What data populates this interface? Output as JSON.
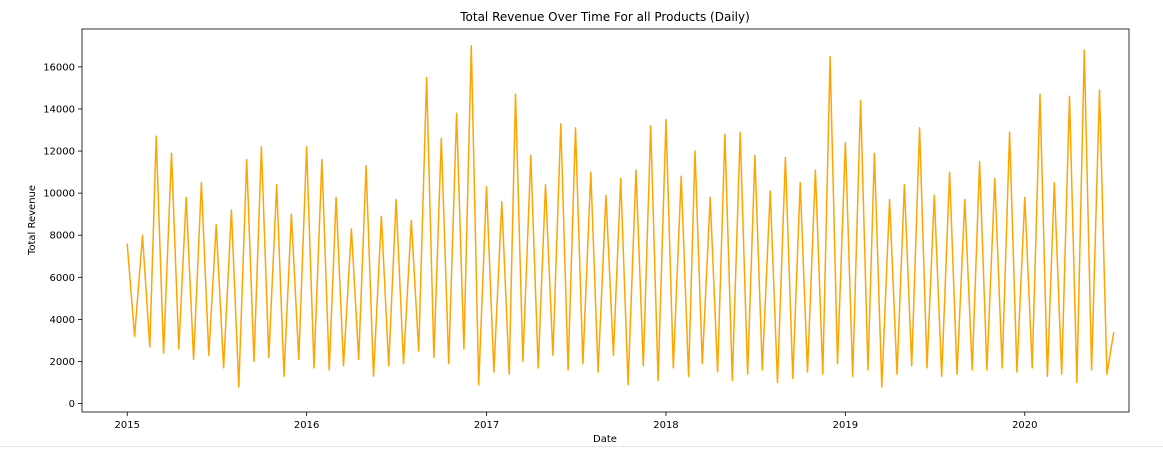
{
  "chart_data": {
    "type": "line",
    "title": "Total Revenue Over Time For all Products (Daily)",
    "xlabel": "Date",
    "ylabel": "Total Revenue",
    "x_range": [
      "2014-10-01",
      "2020-07-31"
    ],
    "ylim": [
      -400,
      17800
    ],
    "x_ticks": [
      "2015",
      "2016",
      "2017",
      "2018",
      "2019",
      "2020"
    ],
    "y_ticks": [
      0,
      2000,
      4000,
      6000,
      8000,
      10000,
      12000,
      14000,
      16000
    ],
    "grid": false,
    "legend": "none",
    "series": [
      {
        "color": "#ffa500",
        "x": [
          "2015-01-01",
          "2015-01-16",
          "2015-02-01",
          "2015-02-16",
          "2015-03-01",
          "2015-03-16",
          "2015-04-01",
          "2015-04-16",
          "2015-05-01",
          "2015-05-16",
          "2015-06-01",
          "2015-06-16",
          "2015-07-01",
          "2015-07-16",
          "2015-08-01",
          "2015-08-16",
          "2015-09-01",
          "2015-09-16",
          "2015-10-01",
          "2015-10-16",
          "2015-11-01",
          "2015-11-16",
          "2015-12-01",
          "2015-12-16",
          "2016-01-01",
          "2016-01-16",
          "2016-02-01",
          "2016-02-16",
          "2016-03-01",
          "2016-03-16",
          "2016-04-01",
          "2016-04-16",
          "2016-05-01",
          "2016-05-16",
          "2016-06-01",
          "2016-06-16",
          "2016-07-01",
          "2016-07-16",
          "2016-08-01",
          "2016-08-16",
          "2016-09-01",
          "2016-09-16",
          "2016-10-01",
          "2016-10-16",
          "2016-11-01",
          "2016-11-16",
          "2016-12-01",
          "2016-12-16",
          "2017-01-01",
          "2017-01-16",
          "2017-02-01",
          "2017-02-16",
          "2017-03-01",
          "2017-03-16",
          "2017-04-01",
          "2017-04-16",
          "2017-05-01",
          "2017-05-16",
          "2017-06-01",
          "2017-06-16",
          "2017-07-01",
          "2017-07-16",
          "2017-08-01",
          "2017-08-16",
          "2017-09-01",
          "2017-09-16",
          "2017-10-01",
          "2017-10-16",
          "2017-11-01",
          "2017-11-16",
          "2017-12-01",
          "2017-12-16",
          "2018-01-01",
          "2018-01-16",
          "2018-02-01",
          "2018-02-16",
          "2018-03-01",
          "2018-03-16",
          "2018-04-01",
          "2018-04-16",
          "2018-05-01",
          "2018-05-16",
          "2018-06-01",
          "2018-06-16",
          "2018-07-01",
          "2018-07-16",
          "2018-08-01",
          "2018-08-16",
          "2018-09-01",
          "2018-09-16",
          "2018-10-01",
          "2018-10-16",
          "2018-11-01",
          "2018-11-16",
          "2018-12-01",
          "2018-12-16",
          "2019-01-01",
          "2019-01-16",
          "2019-02-01",
          "2019-02-16",
          "2019-03-01",
          "2019-03-16",
          "2019-04-01",
          "2019-04-16",
          "2019-05-01",
          "2019-05-16",
          "2019-06-01",
          "2019-06-16",
          "2019-07-01",
          "2019-07-16",
          "2019-08-01",
          "2019-08-16",
          "2019-09-01",
          "2019-09-16",
          "2019-10-01",
          "2019-10-16",
          "2019-11-01",
          "2019-11-16",
          "2019-12-01",
          "2019-12-16",
          "2020-01-01",
          "2020-01-16",
          "2020-02-01",
          "2020-02-16",
          "2020-03-01",
          "2020-03-16",
          "2020-04-01",
          "2020-04-16",
          "2020-05-01",
          "2020-05-16",
          "2020-06-01",
          "2020-06-16",
          "2020-06-30"
        ],
        "values": [
          7600,
          3200,
          8000,
          2700,
          12700,
          2400,
          11900,
          2600,
          9800,
          2100,
          10500,
          2300,
          8500,
          1700,
          9200,
          800,
          11600,
          2000,
          12200,
          2200,
          10400,
          1300,
          9000,
          2100,
          12200,
          1700,
          11600,
          1600,
          9800,
          1800,
          8300,
          2100,
          11300,
          1300,
          8900,
          1800,
          9700,
          1900,
          8700,
          2500,
          15500,
          2200,
          12600,
          1900,
          13800,
          2600,
          17000,
          900,
          10300,
          1500,
          9600,
          1400,
          14700,
          2000,
          11800,
          1700,
          10400,
          2300,
          13300,
          1600,
          13100,
          1900,
          11000,
          1500,
          9900,
          2300,
          10700,
          900,
          11100,
          1800,
          13200,
          1100,
          13500,
          1700,
          10800,
          1300,
          12000,
          1900,
          9800,
          1500,
          12800,
          1100,
          12900,
          1400,
          11800,
          1600,
          10100,
          1000,
          11700,
          1200,
          10500,
          1500,
          11100,
          1400,
          16500,
          1900,
          12400,
          1300,
          14400,
          1600,
          11900,
          800,
          9700,
          1400,
          10400,
          1800,
          13100,
          1700,
          9900,
          1300,
          11000,
          1400,
          9700,
          1600,
          11500,
          1600,
          10700,
          1700,
          12900,
          1500,
          9800,
          1700,
          14700,
          1300,
          10500,
          1400,
          14600,
          1000,
          16800,
          1600,
          14900,
          1400,
          3400
        ]
      }
    ]
  }
}
